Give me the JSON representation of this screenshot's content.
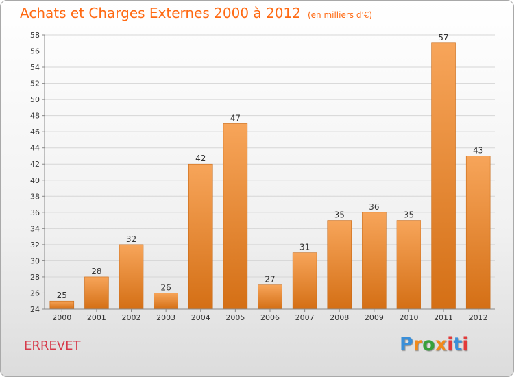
{
  "header": {
    "title": "Achats et Charges Externes 2000 à 2012",
    "subtitle": "(en milliers d'€)"
  },
  "footer": {
    "city": "ERREVET",
    "logo_text": "Proxiti"
  },
  "colors": {
    "title": "#ff6a13",
    "city": "#d63a4a",
    "bar_light": "#f7a55a",
    "bar_dark": "#d46f15",
    "logo": [
      "#3a8fd9",
      "#f28a1a",
      "#37a13a",
      "#f28a1a",
      "#e23a3a",
      "#3a8fd9",
      "#e23a3a"
    ]
  },
  "chart_data": {
    "type": "bar",
    "categories": [
      "2000",
      "2001",
      "2002",
      "2003",
      "2004",
      "2005",
      "2006",
      "2007",
      "2008",
      "2009",
      "2010",
      "2011",
      "2012"
    ],
    "values": [
      25,
      28,
      32,
      26,
      42,
      47,
      27,
      31,
      35,
      36,
      35,
      57,
      43
    ],
    "title": "Achats et Charges Externes 2000 à 2012",
    "xlabel": "",
    "ylabel": "",
    "ylim": [
      24,
      58
    ],
    "yticks": [
      24,
      26,
      28,
      30,
      32,
      34,
      36,
      38,
      40,
      42,
      44,
      46,
      48,
      50,
      52,
      54,
      56,
      58
    ],
    "grid": "horizontal",
    "legend": "none",
    "data_labels": true
  }
}
